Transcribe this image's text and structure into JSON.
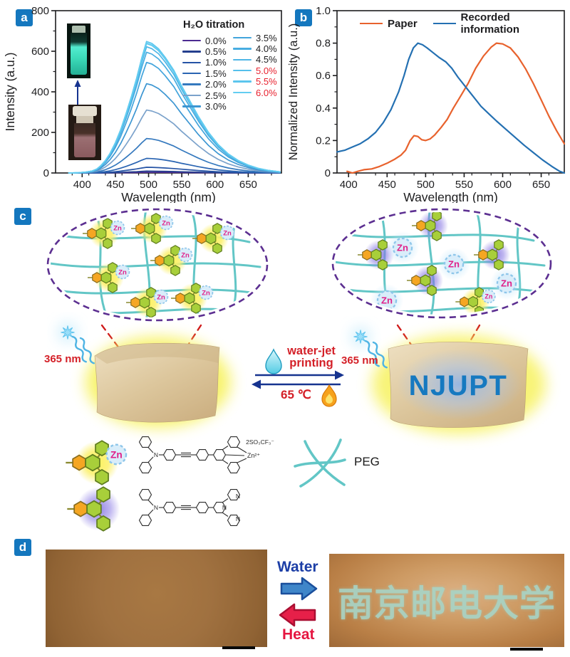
{
  "panel_a": {
    "label": "a"
  },
  "panel_b": {
    "label": "b"
  },
  "panel_c": {
    "label": "c",
    "zn": "Zn",
    "uv_label": "365 nm",
    "waterjet_line1": "water-jet",
    "waterjet_line2": "printing",
    "temp_label": "65 ℃",
    "paper_text": "NJUPT",
    "peg_label": "PEG",
    "counterion": "2SO₃CF₃⁻",
    "zn_ion": "Zn²⁺",
    "atom_n": "N"
  },
  "panel_d": {
    "label": "d",
    "water_label": "Water",
    "heat_label": "Heat",
    "printed_text": "南京邮电大学"
  },
  "chart_data": [
    {
      "type": "line",
      "legend_title": "H₂O titration",
      "xlabel": "Wavelength (nm)",
      "ylabel": "Intensity (a.u.)",
      "xlim": [
        360,
        700
      ],
      "ylim": [
        0,
        800
      ],
      "xticks": [
        400,
        450,
        500,
        550,
        600,
        650
      ],
      "xtick_labels": [
        "400",
        "450",
        "500",
        "550",
        "600",
        "650"
      ],
      "ytick_labels": [
        "0",
        "200",
        "400",
        "600",
        "800"
      ],
      "yticks": [
        0,
        200,
        400,
        600,
        800
      ],
      "shape_x": [
        380,
        395,
        405,
        415,
        422,
        428,
        435,
        442,
        450,
        458,
        466,
        474,
        482,
        490,
        497,
        505,
        515,
        525,
        538,
        550,
        562,
        575,
        590,
        605,
        620,
        635,
        650,
        665,
        680,
        698
      ],
      "shape_v": [
        0,
        0.002,
        0.006,
        0.015,
        0.03,
        0.055,
        0.095,
        0.15,
        0.23,
        0.33,
        0.45,
        0.58,
        0.72,
        0.88,
        1.0,
        0.985,
        0.945,
        0.88,
        0.78,
        0.66,
        0.55,
        0.43,
        0.31,
        0.215,
        0.145,
        0.095,
        0.06,
        0.035,
        0.02,
        0.008
      ],
      "series": [
        {
          "name": "0.0%",
          "amp": 3,
          "color": "#4b2a91",
          "label_color": "#1d1d1f"
        },
        {
          "name": "0.5%",
          "amp": 9,
          "color": "#253f8e",
          "label_color": "#1d1d1f"
        },
        {
          "name": "1.0%",
          "amp": 28,
          "color": "#2553a5",
          "label_color": "#1d1d1f"
        },
        {
          "name": "1.5%",
          "amp": 72,
          "color": "#2a64b2",
          "label_color": "#1d1d1f"
        },
        {
          "name": "2.0%",
          "amp": 170,
          "color": "#3579be",
          "label_color": "#1d1d1f"
        },
        {
          "name": "2.5%",
          "amp": 310,
          "color": "#7ba2cb",
          "label_color": "#1d1d1f"
        },
        {
          "name": "3.0%",
          "amp": 440,
          "color": "#3c96d2",
          "label_color": "#1d1d1f"
        },
        {
          "name": "3.5%",
          "amp": 545,
          "color": "#42a4dc",
          "label_color": "#1d1d1f"
        },
        {
          "name": "4.0%",
          "amp": 595,
          "color": "#48ade1",
          "label_color": "#1d1d1f"
        },
        {
          "name": "4.5%",
          "amp": 622,
          "color": "#4fb6e6",
          "label_color": "#1d1d1f"
        },
        {
          "name": "5.0%",
          "amp": 638,
          "color": "#55bfeb",
          "label_color": "#e8212e"
        },
        {
          "name": "5.5%",
          "amp": 648,
          "color": "#5cc6ee",
          "label_color": "#e8212e"
        },
        {
          "name": "6.0%",
          "amp": 640,
          "color": "#63cdf1",
          "label_color": "#e8212e"
        }
      ]
    },
    {
      "type": "line",
      "xlabel": "Wavelength (nm)",
      "ylabel": "Normalized Intensity (a.u.)",
      "xlim": [
        385,
        680
      ],
      "ylim": [
        0,
        1.0
      ],
      "xticks": [
        400,
        450,
        500,
        550,
        600,
        650
      ],
      "xtick_labels": [
        "400",
        "450",
        "500",
        "550",
        "600",
        "650"
      ],
      "yticks": [
        0,
        0.2,
        0.4,
        0.6,
        0.8,
        1.0
      ],
      "ytick_labels": [
        "0",
        "0.2",
        "0.4",
        "0.6",
        "0.8",
        "1.0"
      ],
      "legend_position": "top-inside",
      "series": [
        {
          "name": "Paper",
          "color": "#e8622d",
          "x": [
            398,
            405,
            412,
            420,
            430,
            440,
            450,
            460,
            468,
            474,
            480,
            485,
            490,
            495,
            500,
            506,
            512,
            520,
            528,
            536,
            545,
            555,
            565,
            575,
            585,
            592,
            600,
            610,
            620,
            630,
            640,
            650,
            660,
            670,
            680
          ],
          "y": [
            0.01,
            0.0,
            0.01,
            0.02,
            0.025,
            0.04,
            0.06,
            0.085,
            0.11,
            0.14,
            0.2,
            0.23,
            0.225,
            0.205,
            0.2,
            0.21,
            0.235,
            0.28,
            0.33,
            0.4,
            0.47,
            0.55,
            0.645,
            0.72,
            0.775,
            0.8,
            0.795,
            0.77,
            0.715,
            0.64,
            0.55,
            0.45,
            0.35,
            0.26,
            0.18
          ]
        },
        {
          "name": "Recorded information",
          "color": "#2470b2",
          "x": [
            385,
            395,
            405,
            415,
            425,
            435,
            445,
            455,
            465,
            472,
            478,
            484,
            490,
            496,
            502,
            510,
            518,
            526,
            534,
            542,
            552,
            562,
            572,
            582,
            592,
            604,
            616,
            628,
            640,
            652,
            664,
            674,
            680
          ],
          "y": [
            0.13,
            0.14,
            0.16,
            0.18,
            0.21,
            0.25,
            0.31,
            0.39,
            0.5,
            0.6,
            0.7,
            0.77,
            0.8,
            0.79,
            0.77,
            0.74,
            0.71,
            0.685,
            0.645,
            0.59,
            0.53,
            0.47,
            0.41,
            0.365,
            0.32,
            0.27,
            0.22,
            0.17,
            0.125,
            0.08,
            0.04,
            0.01,
            0.0
          ]
        }
      ]
    }
  ]
}
